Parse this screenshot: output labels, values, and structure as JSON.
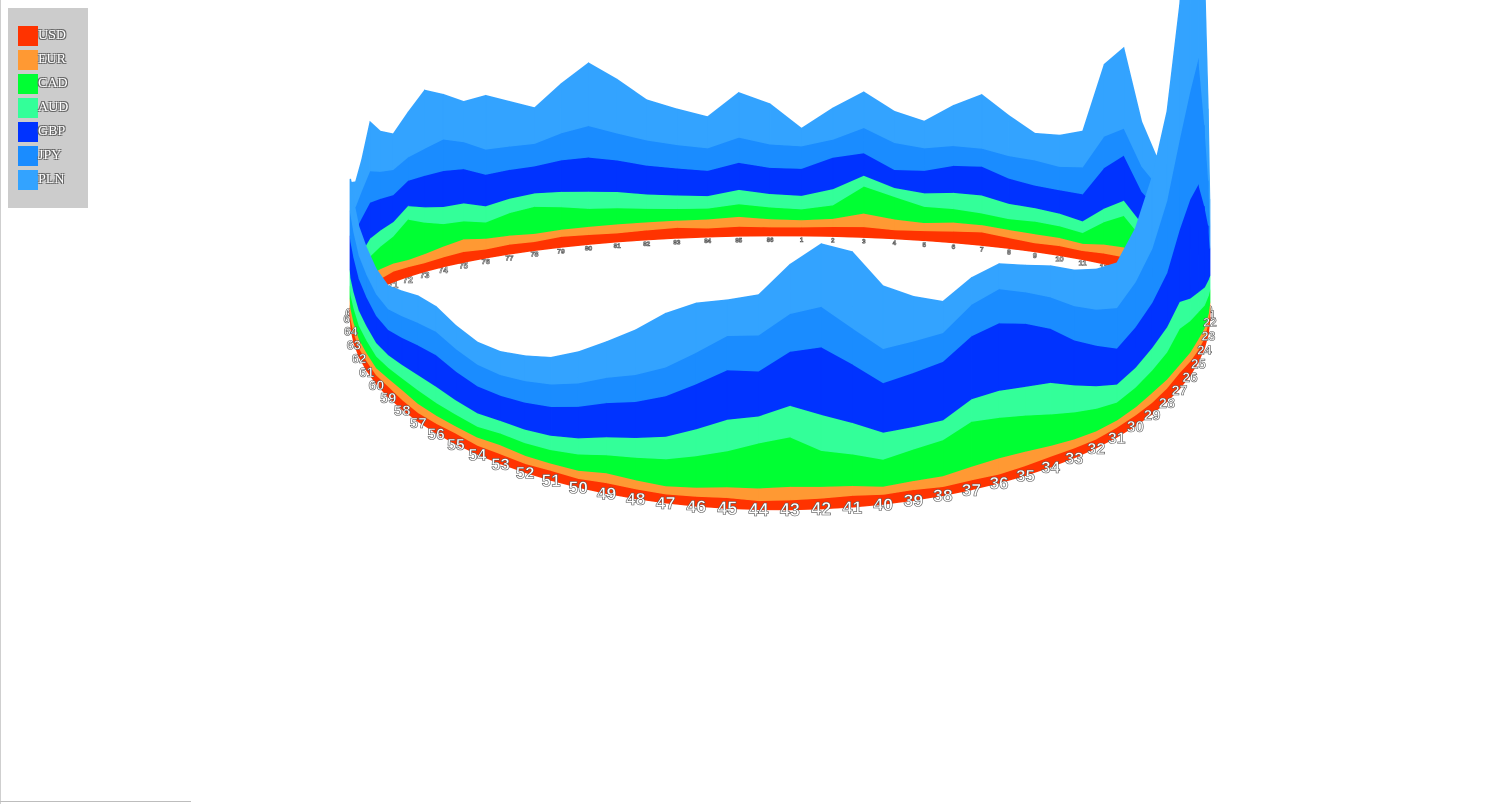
{
  "chart_data": {
    "type": "area",
    "title": "",
    "projection": "3d-ring",
    "categories": [
      "1",
      "2",
      "3",
      "4",
      "5",
      "6",
      "7",
      "8",
      "9",
      "10",
      "11",
      "12",
      "13",
      "14",
      "15",
      "16",
      "17",
      "18",
      "19",
      "20",
      "21",
      "22",
      "23",
      "24",
      "25",
      "26",
      "27",
      "28",
      "29",
      "30",
      "31",
      "32",
      "33",
      "34",
      "35",
      "36",
      "37",
      "38",
      "39",
      "40",
      "41",
      "42",
      "43",
      "44",
      "45",
      "46",
      "47",
      "48",
      "49",
      "50",
      "51",
      "52",
      "53",
      "54",
      "55",
      "56",
      "57",
      "58",
      "59",
      "60",
      "61",
      "62",
      "63",
      "64",
      "65",
      "66",
      "67",
      "68",
      "69",
      "70",
      "71",
      "72",
      "73",
      "74",
      "75",
      "76",
      "77",
      "78",
      "79",
      "80",
      "81",
      "82",
      "83",
      "84",
      "85",
      "86"
    ],
    "series": [
      {
        "name": "USD",
        "color": "#ff3300",
        "values": [
          1.0,
          1.1,
          1.2,
          1.0,
          1.1,
          1.3,
          1.5,
          1.2,
          1.0,
          1.1,
          1.0,
          1.2,
          1.3,
          1.1,
          1.0,
          1.2,
          1.1,
          1.0,
          1.1,
          1.2,
          1.0,
          1.1,
          1.3,
          1.2,
          1.4,
          1.6,
          1.8,
          1.5,
          1.3,
          1.2,
          1.1,
          1.0,
          1.1,
          1.2,
          1.1,
          1.0,
          1.1,
          1.0,
          1.2,
          1.1,
          1.3,
          1.2,
          1.1,
          1.0,
          1.2,
          1.1,
          1.0,
          1.1,
          1.2,
          1.0,
          1.1,
          1.0,
          1.1,
          1.0,
          1.2,
          1.1,
          1.0,
          1.1,
          1.2,
          1.0,
          1.1,
          1.0,
          1.2,
          1.1,
          1.0,
          1.1,
          1.2,
          1.0,
          1.1,
          1.0,
          1.2,
          1.1,
          1.0,
          1.1,
          1.2,
          1.0,
          1.1,
          1.0,
          1.2,
          1.1,
          1.0,
          1.1,
          1.2,
          1.0,
          1.1,
          1.0
        ]
      },
      {
        "name": "EUR",
        "color": "#ff9933",
        "values": [
          0.8,
          0.9,
          1.5,
          1.2,
          0.9,
          1.0,
          0.8,
          0.9,
          1.0,
          0.9,
          0.8,
          1.0,
          1.1,
          0.9,
          0.8,
          1.0,
          0.9,
          0.8,
          0.9,
          1.0,
          0.8,
          0.9,
          1.0,
          1.1,
          1.2,
          1.0,
          0.9,
          1.0,
          1.1,
          0.9,
          0.8,
          0.9,
          1.0,
          1.2,
          1.6,
          1.8,
          1.5,
          1.2,
          1.0,
          0.9,
          1.1,
          1.3,
          1.5,
          1.4,
          1.2,
          1.0,
          0.9,
          1.0,
          1.1,
          0.9,
          0.8,
          0.9,
          1.0,
          0.9,
          0.8,
          0.9,
          1.0,
          1.1,
          0.9,
          0.8,
          0.9,
          1.0,
          1.1,
          1.2,
          1.0,
          0.9,
          0.8,
          0.9,
          1.0,
          1.1,
          0.9,
          0.8,
          1.0,
          1.2,
          1.4,
          1.2,
          1.0,
          0.9,
          0.8,
          0.9,
          1.0,
          0.9,
          0.8,
          1.0,
          1.1,
          0.9
        ]
      },
      {
        "name": "CAD",
        "color": "#00ff33",
        "values": [
          1.2,
          1.5,
          3.0,
          2.5,
          1.8,
          1.5,
          1.3,
          1.2,
          1.4,
          1.3,
          1.2,
          2.5,
          3.5,
          2.0,
          1.5,
          1.3,
          1.2,
          1.3,
          1.4,
          1.5,
          1.3,
          1.4,
          2.0,
          2.5,
          3.0,
          3.5,
          4.0,
          3.0,
          2.5,
          2.2,
          2.0,
          2.5,
          3.0,
          3.5,
          4.0,
          4.5,
          5.0,
          4.0,
          3.5,
          3.0,
          3.5,
          4.0,
          5.5,
          5.0,
          4.0,
          3.5,
          3.0,
          2.5,
          2.0,
          1.8,
          1.5,
          1.4,
          1.3,
          1.2,
          1.3,
          1.4,
          1.5,
          1.3,
          1.2,
          1.3,
          1.4,
          1.5,
          1.6,
          1.5,
          1.4,
          1.3,
          1.2,
          1.5,
          2.0,
          2.5,
          3.0,
          4.5,
          3.5,
          2.5,
          2.0,
          1.8,
          2.5,
          3.0,
          2.5,
          2.0,
          1.8,
          1.5,
          1.3,
          1.2,
          1.4,
          1.3
        ]
      },
      {
        "name": "AUD",
        "color": "#33ff99",
        "values": [
          1.5,
          1.8,
          1.2,
          1.0,
          1.5,
          1.8,
          2.0,
          1.7,
          1.5,
          1.4,
          1.3,
          1.5,
          1.7,
          1.6,
          1.5,
          1.8,
          2.0,
          1.8,
          1.6,
          1.5,
          1.4,
          1.6,
          1.8,
          2.0,
          2.2,
          2.5,
          3.0,
          2.8,
          2.5,
          2.2,
          2.0,
          2.5,
          3.0,
          3.5,
          3.2,
          3.0,
          2.5,
          2.2,
          2.5,
          3.0,
          3.5,
          4.0,
          3.5,
          3.0,
          3.5,
          3.0,
          2.5,
          2.2,
          2.0,
          1.8,
          1.6,
          1.5,
          1.4,
          1.5,
          1.6,
          1.8,
          1.7,
          1.5,
          1.4,
          1.5,
          1.6,
          1.7,
          1.8,
          1.9,
          1.8,
          1.7,
          1.6,
          1.8,
          2.0,
          1.8,
          1.6,
          1.5,
          1.7,
          1.9,
          2.0,
          1.8,
          1.6,
          1.5,
          1.7,
          1.9,
          1.8,
          1.6,
          1.5,
          1.4,
          1.6,
          1.5
        ]
      },
      {
        "name": "GBP",
        "color": "#0033ff",
        "values": [
          3.0,
          3.5,
          2.5,
          2.0,
          2.5,
          3.0,
          3.2,
          2.8,
          2.5,
          2.6,
          3.0,
          4.5,
          5.0,
          3.5,
          3.0,
          2.8,
          2.5,
          2.6,
          2.8,
          3.0,
          2.8,
          3.0,
          6.0,
          9.0,
          12.0,
          11.0,
          8.0,
          6.0,
          5.0,
          4.5,
          4.0,
          4.5,
          5.0,
          6.0,
          7.0,
          7.5,
          7.0,
          6.5,
          6.0,
          5.5,
          6.5,
          7.5,
          6.0,
          5.0,
          5.5,
          5.0,
          4.5,
          4.0,
          3.8,
          3.5,
          3.2,
          3.0,
          2.8,
          3.0,
          3.2,
          3.5,
          3.3,
          3.0,
          2.8,
          3.0,
          3.2,
          3.5,
          3.8,
          4.0,
          3.8,
          3.6,
          3.5,
          3.8,
          4.0,
          3.5,
          3.0,
          2.8,
          3.5,
          4.0,
          3.8,
          3.5,
          3.2,
          3.0,
          3.5,
          3.8,
          3.5,
          3.2,
          3.0,
          2.8,
          3.0,
          2.9
        ]
      },
      {
        "name": "JPY",
        "color": "#1a8cff",
        "values": [
          2.5,
          2.0,
          2.8,
          3.0,
          2.5,
          2.2,
          2.0,
          2.5,
          2.8,
          2.6,
          3.0,
          3.5,
          3.0,
          2.8,
          2.5,
          2.4,
          2.2,
          2.0,
          2.2,
          2.4,
          2.2,
          2.5,
          5.0,
          9.0,
          14.0,
          12.0,
          10.0,
          8.0,
          6.0,
          5.0,
          4.5,
          4.0,
          3.8,
          3.5,
          3.5,
          3.8,
          3.5,
          3.2,
          3.5,
          3.8,
          4.0,
          4.5,
          4.2,
          4.0,
          3.8,
          3.5,
          3.2,
          3.0,
          2.8,
          2.6,
          2.5,
          2.4,
          2.3,
          2.4,
          2.5,
          2.6,
          2.5,
          2.4,
          2.3,
          2.4,
          2.5,
          2.6,
          2.8,
          3.0,
          2.8,
          2.7,
          2.6,
          3.0,
          3.5,
          3.0,
          2.8,
          2.6,
          3.0,
          3.5,
          3.0,
          2.8,
          2.6,
          2.5,
          3.0,
          3.5,
          3.0,
          2.8,
          2.6,
          2.5,
          2.8,
          2.6
        ]
      },
      {
        "name": "PLN",
        "color": "#33a3ff",
        "values": [
          2.0,
          3.5,
          4.0,
          3.5,
          3.0,
          4.5,
          6.0,
          4.5,
          3.0,
          3.5,
          4.0,
          8.0,
          9.0,
          5.0,
          3.0,
          2.5,
          2.2,
          2.0,
          2.2,
          2.5,
          2.8,
          3.0,
          8.0,
          18.0,
          30.0,
          25.0,
          15.0,
          10.0,
          8.0,
          6.0,
          5.0,
          4.5,
          4.0,
          3.5,
          3.0,
          2.8,
          3.0,
          3.5,
          5.0,
          7.0,
          8.5,
          7.0,
          5.5,
          4.5,
          4.0,
          5.5,
          6.0,
          5.0,
          4.0,
          3.5,
          3.0,
          2.8,
          2.6,
          2.5,
          2.6,
          2.8,
          3.0,
          2.8,
          2.6,
          2.8,
          3.0,
          3.2,
          3.5,
          4.0,
          3.5,
          3.0,
          2.8,
          3.5,
          5.5,
          4.5,
          4.0,
          5.0,
          6.5,
          5.0,
          4.5,
          6.0,
          5.0,
          4.0,
          5.5,
          7.0,
          6.0,
          4.5,
          4.0,
          3.5,
          5.0,
          4.5
        ]
      }
    ],
    "legend": "top-left",
    "grid": false
  }
}
